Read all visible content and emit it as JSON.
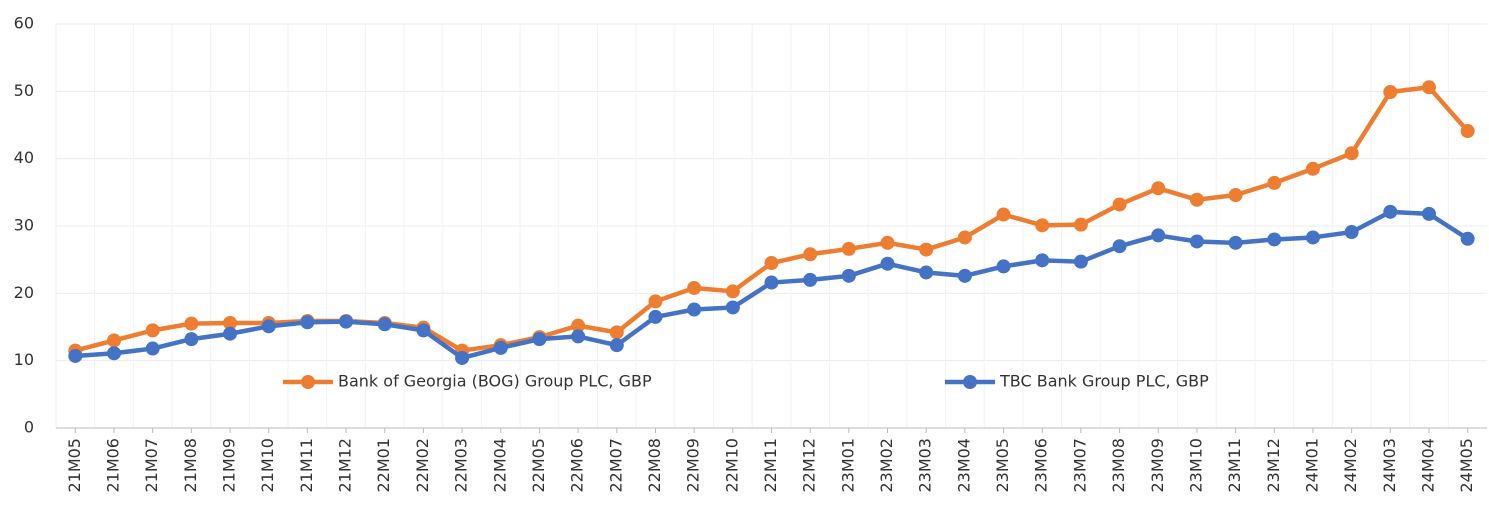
{
  "chart_data": {
    "type": "line",
    "categories": [
      "21M05",
      "21M06",
      "21M07",
      "21M08",
      "21M09",
      "21M10",
      "21M11",
      "21M12",
      "22M01",
      "22M02",
      "22M03",
      "22M04",
      "22M05",
      "22M06",
      "22M07",
      "22M08",
      "22M09",
      "22M10",
      "22M11",
      "22M12",
      "23M01",
      "23M02",
      "23M03",
      "23M04",
      "23M05",
      "23M06",
      "23M07",
      "23M08",
      "23M09",
      "23M10",
      "23M11",
      "23M12",
      "24M01",
      "24M02",
      "24M03",
      "24M04",
      "24M05"
    ],
    "series": [
      {
        "name": "Bank of Georgia (BOG) Group PLC, GBP",
        "color": "#ed7d31",
        "values": [
          11.5,
          13,
          14.5,
          15.5,
          15.6,
          15.6,
          15.9,
          15.9,
          15.6,
          14.9,
          11.5,
          12.3,
          13.5,
          15.2,
          14.2,
          18.8,
          20.8,
          20.3,
          24.5,
          25.8,
          26.6,
          27.5,
          26.5,
          28.3,
          31.7,
          30.1,
          30.2,
          33.2,
          35.6,
          33.9,
          34.6,
          36.4,
          38.5,
          40.8,
          49.9,
          50.6,
          44.1
        ]
      },
      {
        "name": "TBC Bank Group PLC, GBP",
        "color": "#4472c4",
        "values": [
          10.7,
          11.1,
          11.8,
          13.2,
          14.0,
          15.1,
          15.7,
          15.8,
          15.4,
          14.5,
          10.4,
          11.9,
          13.2,
          13.6,
          12.3,
          16.5,
          17.6,
          17.9,
          21.6,
          22.0,
          22.6,
          24.4,
          23.1,
          22.6,
          24.0,
          24.9,
          24.7,
          27.0,
          28.6,
          27.7,
          27.5,
          28.0,
          28.3,
          29.1,
          32.1,
          31.8,
          28.1
        ]
      }
    ],
    "ylim": [
      0,
      60
    ],
    "yticks": [
      0,
      10,
      20,
      30,
      40,
      50,
      60
    ],
    "grid": true,
    "legend": "bottom"
  }
}
